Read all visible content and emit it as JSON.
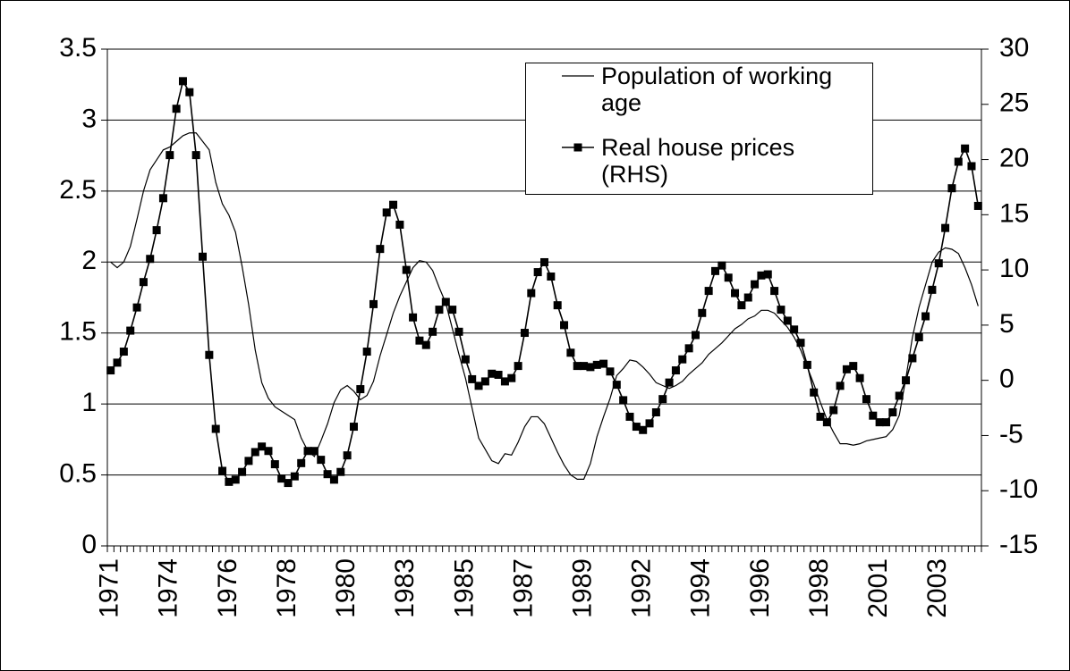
{
  "chart_data": {
    "type": "line",
    "categories": [
      "1971",
      null,
      null,
      null,
      null,
      null,
      null,
      null,
      null,
      "1974",
      null,
      null,
      null,
      null,
      null,
      null,
      null,
      null,
      "1976",
      null,
      null,
      null,
      null,
      null,
      null,
      null,
      null,
      "1978",
      null,
      null,
      null,
      null,
      null,
      null,
      null,
      null,
      "1980",
      null,
      null,
      null,
      null,
      null,
      null,
      null,
      null,
      "1983",
      null,
      null,
      null,
      null,
      null,
      null,
      null,
      null,
      "1985",
      null,
      null,
      null,
      null,
      null,
      null,
      null,
      null,
      "1987",
      null,
      null,
      null,
      null,
      null,
      null,
      null,
      null,
      "1989",
      null,
      null,
      null,
      null,
      null,
      null,
      null,
      null,
      "1992",
      null,
      null,
      null,
      null,
      null,
      null,
      null,
      null,
      "1994",
      null,
      null,
      null,
      null,
      null,
      null,
      null,
      null,
      "1996",
      null,
      null,
      null,
      null,
      null,
      null,
      null,
      null,
      "1998",
      null,
      null,
      null,
      null,
      null,
      null,
      null,
      null,
      "2001",
      null,
      null,
      null,
      null,
      null,
      null,
      null,
      null,
      "2003",
      null,
      null,
      null,
      null,
      null,
      null
    ],
    "series": [
      {
        "name": "Population of working age",
        "color": "#000000",
        "marker": "none",
        "values": [
          2.0,
          1.96,
          2.0,
          2.11,
          2.3,
          2.5,
          2.65,
          2.72,
          2.79,
          2.81,
          2.85,
          2.89,
          2.91,
          2.91,
          2.85,
          2.79,
          2.56,
          2.41,
          2.33,
          2.21,
          1.97,
          1.7,
          1.38,
          1.15,
          1.04,
          0.98,
          0.95,
          0.92,
          0.89,
          0.76,
          0.67,
          0.63,
          0.74,
          0.86,
          1.01,
          1.1,
          1.13,
          1.09,
          1.03,
          1.06,
          1.16,
          1.34,
          1.49,
          1.64,
          1.76,
          1.86,
          1.96,
          2.01,
          2.0,
          1.94,
          1.82,
          1.71,
          1.53,
          1.35,
          1.18,
          0.97,
          0.76,
          0.68,
          0.6,
          0.58,
          0.65,
          0.64,
          0.73,
          0.84,
          0.91,
          0.91,
          0.86,
          0.76,
          0.66,
          0.57,
          0.5,
          0.47,
          0.47,
          0.58,
          0.77,
          0.91,
          1.04,
          1.2,
          1.25,
          1.31,
          1.3,
          1.26,
          1.21,
          1.15,
          1.13,
          1.11,
          1.13,
          1.16,
          1.21,
          1.25,
          1.29,
          1.35,
          1.39,
          1.43,
          1.48,
          1.53,
          1.56,
          1.6,
          1.62,
          1.66,
          1.66,
          1.64,
          1.59,
          1.54,
          1.47,
          1.38,
          1.26,
          1.14,
          1.01,
          0.89,
          0.8,
          0.72,
          0.72,
          0.71,
          0.72,
          0.74,
          0.75,
          0.76,
          0.77,
          0.82,
          0.92,
          1.18,
          1.47,
          1.68,
          1.84,
          2.0,
          2.07,
          2.1,
          2.09,
          2.06,
          1.96,
          1.84,
          1.69
        ]
      },
      {
        "name": "Real house prices (RHS)",
        "color": "#000000",
        "axis": "y2",
        "marker": "square",
        "values": [
          0.9,
          1.6,
          2.6,
          4.5,
          6.6,
          8.9,
          11.0,
          13.6,
          16.5,
          20.4,
          24.6,
          27.1,
          26.1,
          20.4,
          11.2,
          2.3,
          -4.4,
          -8.2,
          -9.2,
          -9.0,
          -8.3,
          -7.3,
          -6.5,
          -6.0,
          -6.4,
          -7.6,
          -8.9,
          -9.3,
          -8.7,
          -7.5,
          -6.4,
          -6.4,
          -7.2,
          -8.5,
          -9.0,
          -8.3,
          -6.8,
          -4.2,
          -0.8,
          2.6,
          6.9,
          11.9,
          15.2,
          15.9,
          14.1,
          10.0,
          5.7,
          3.6,
          3.2,
          4.4,
          6.4,
          7.1,
          6.4,
          4.4,
          1.9,
          0.1,
          -0.5,
          -0.1,
          0.6,
          0.5,
          -0.1,
          0.2,
          1.3,
          4.3,
          7.9,
          9.8,
          10.7,
          9.4,
          6.8,
          5.0,
          2.5,
          1.3,
          1.3,
          1.2,
          1.4,
          1.5,
          0.8,
          -0.4,
          -1.8,
          -3.3,
          -4.2,
          -4.5,
          -3.9,
          -2.9,
          -1.7,
          -0.2,
          0.9,
          1.9,
          2.9,
          4.1,
          6.1,
          8.1,
          9.9,
          10.4,
          9.3,
          7.9,
          6.8,
          7.5,
          8.7,
          9.5,
          9.6,
          8.1,
          6.4,
          5.4,
          4.6,
          3.4,
          1.4,
          -1.1,
          -3.3,
          -3.8,
          -2.7,
          -0.5,
          1.0,
          1.3,
          0.2,
          -1.7,
          -3.2,
          -3.8,
          -3.8,
          -2.9,
          -1.4,
          0.0,
          2.0,
          3.9,
          5.8,
          8.2,
          10.6,
          13.8,
          17.4,
          19.8,
          21.0,
          19.4,
          15.8
        ]
      }
    ],
    "ylim": [
      0,
      3.5
    ],
    "yticks": [
      0,
      0.5,
      1,
      1.5,
      2,
      2.5,
      3,
      3.5
    ],
    "y2lim": [
      -15,
      30
    ],
    "y2ticks": [
      -15,
      -10,
      -5,
      0,
      5,
      10,
      15,
      20,
      25,
      30
    ],
    "grid": true,
    "legend": "top-right"
  }
}
